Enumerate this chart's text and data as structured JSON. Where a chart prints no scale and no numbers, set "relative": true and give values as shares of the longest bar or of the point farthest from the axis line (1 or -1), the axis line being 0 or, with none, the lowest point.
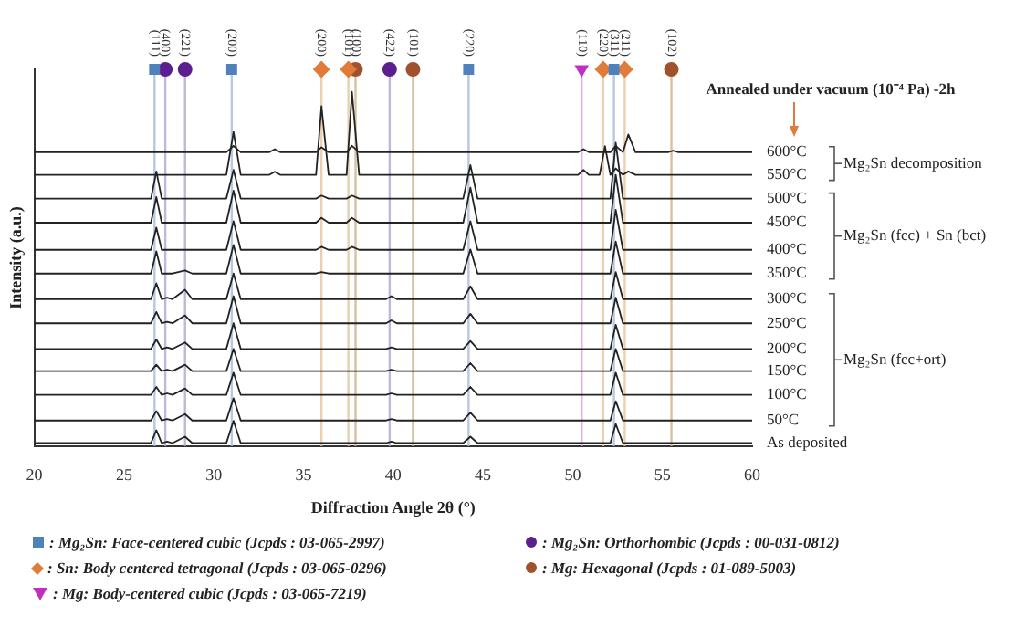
{
  "chart_data": {
    "type": "line",
    "relative": true,
    "xlabel": "Diffraction Angle 2θ (°)",
    "ylabel": "Intensity (a.u.)",
    "x": [
      20,
      26.5,
      26.8,
      27.1,
      27.4,
      27.7,
      28.4,
      28.8,
      30.7,
      31.1,
      31.5,
      33.1,
      33.4,
      33.7,
      35.7,
      36.0,
      36.4,
      37.4,
      37.7,
      38.1,
      39.6,
      39.9,
      40.2,
      43.9,
      44.3,
      44.7,
      50.3,
      50.6,
      50.9,
      51.5,
      51.8,
      52.1,
      52.4,
      52.8,
      53.1,
      53.5,
      55.3,
      55.6,
      55.9,
      60
    ],
    "xlim": [
      20,
      60
    ],
    "xticks": [
      20,
      25,
      30,
      35,
      40,
      45,
      50,
      55,
      60
    ],
    "grid": false,
    "legend": "bottom",
    "marker": "none",
    "line_style": "solid",
    "series": [
      {
        "name": "As deposited",
        "color": "#222222",
        "values": [
          0.008,
          0.008,
          0.042,
          0.008,
          0.012,
          0.008,
          0.025,
          0.008,
          0.008,
          0.067,
          0.008,
          0.008,
          0.008,
          0.008,
          0.008,
          0.008,
          0.008,
          0.008,
          0.008,
          0.008,
          0.008,
          0.012,
          0.008,
          0.008,
          0.025,
          0.008,
          0.008,
          0.008,
          0.008,
          0.008,
          0.008,
          0.008,
          0.059,
          0.008,
          0.008,
          0.008,
          0.008,
          0.008,
          0.008,
          0.008
        ]
      },
      {
        "name": "50°C",
        "color": "#222222",
        "values": [
          0.068,
          0.068,
          0.093,
          0.068,
          0.072,
          0.068,
          0.085,
          0.068,
          0.068,
          0.127,
          0.068,
          0.068,
          0.068,
          0.068,
          0.068,
          0.068,
          0.068,
          0.068,
          0.068,
          0.068,
          0.068,
          0.072,
          0.068,
          0.068,
          0.089,
          0.068,
          0.068,
          0.068,
          0.068,
          0.068,
          0.068,
          0.068,
          0.119,
          0.068,
          0.068,
          0.068,
          0.068,
          0.068,
          0.068,
          0.068
        ]
      },
      {
        "name": "100°C",
        "color": "#222222",
        "values": [
          0.136,
          0.136,
          0.157,
          0.136,
          0.14,
          0.136,
          0.153,
          0.136,
          0.136,
          0.195,
          0.136,
          0.136,
          0.136,
          0.136,
          0.136,
          0.136,
          0.136,
          0.136,
          0.136,
          0.136,
          0.136,
          0.14,
          0.136,
          0.136,
          0.157,
          0.136,
          0.136,
          0.136,
          0.136,
          0.136,
          0.136,
          0.136,
          0.195,
          0.136,
          0.136,
          0.136,
          0.136,
          0.136,
          0.136,
          0.136
        ]
      },
      {
        "name": "150°C",
        "color": "#222222",
        "values": [
          0.199,
          0.199,
          0.216,
          0.199,
          0.203,
          0.199,
          0.216,
          0.199,
          0.199,
          0.258,
          0.199,
          0.199,
          0.199,
          0.199,
          0.199,
          0.199,
          0.199,
          0.199,
          0.199,
          0.199,
          0.199,
          0.203,
          0.199,
          0.199,
          0.22,
          0.199,
          0.199,
          0.199,
          0.199,
          0.199,
          0.199,
          0.199,
          0.258,
          0.199,
          0.199,
          0.199,
          0.199,
          0.199,
          0.199,
          0.199
        ]
      },
      {
        "name": "200°C",
        "color": "#222222",
        "values": [
          0.258,
          0.258,
          0.283,
          0.258,
          0.262,
          0.258,
          0.275,
          0.258,
          0.258,
          0.326,
          0.258,
          0.258,
          0.258,
          0.258,
          0.258,
          0.258,
          0.258,
          0.258,
          0.258,
          0.258,
          0.258,
          0.262,
          0.258,
          0.258,
          0.279,
          0.258,
          0.258,
          0.258,
          0.258,
          0.258,
          0.258,
          0.258,
          0.322,
          0.258,
          0.258,
          0.258,
          0.258,
          0.258,
          0.258,
          0.258
        ]
      },
      {
        "name": "250°C",
        "color": "#222222",
        "values": [
          0.326,
          0.326,
          0.356,
          0.326,
          0.33,
          0.326,
          0.347,
          0.326,
          0.326,
          0.398,
          0.326,
          0.326,
          0.326,
          0.326,
          0.326,
          0.326,
          0.326,
          0.326,
          0.326,
          0.326,
          0.326,
          0.334,
          0.326,
          0.326,
          0.351,
          0.326,
          0.326,
          0.326,
          0.326,
          0.326,
          0.326,
          0.326,
          0.394,
          0.326,
          0.326,
          0.326,
          0.326,
          0.326,
          0.326,
          0.326
        ]
      },
      {
        "name": "300°C",
        "color": "#222222",
        "values": [
          0.39,
          0.39,
          0.432,
          0.39,
          0.394,
          0.39,
          0.415,
          0.39,
          0.39,
          0.458,
          0.39,
          0.39,
          0.39,
          0.39,
          0.39,
          0.39,
          0.39,
          0.39,
          0.39,
          0.39,
          0.39,
          0.398,
          0.39,
          0.39,
          0.424,
          0.39,
          0.39,
          0.39,
          0.39,
          0.39,
          0.39,
          0.39,
          0.462,
          0.39,
          0.39,
          0.39,
          0.39,
          0.39,
          0.39,
          0.39
        ]
      },
      {
        "name": "350°C",
        "color": "#222222",
        "values": [
          0.458,
          0.458,
          0.517,
          0.458,
          0.458,
          0.458,
          0.466,
          0.458,
          0.458,
          0.534,
          0.458,
          0.458,
          0.458,
          0.458,
          0.458,
          0.462,
          0.458,
          0.458,
          0.458,
          0.458,
          0.458,
          0.458,
          0.458,
          0.458,
          0.522,
          0.458,
          0.458,
          0.458,
          0.458,
          0.458,
          0.458,
          0.458,
          0.543,
          0.458,
          0.458,
          0.458,
          0.458,
          0.458,
          0.458,
          0.458
        ]
      },
      {
        "name": "400°C",
        "color": "#222222",
        "values": [
          0.521,
          0.521,
          0.58,
          0.521,
          0.521,
          0.521,
          0.521,
          0.521,
          0.521,
          0.597,
          0.521,
          0.521,
          0.521,
          0.521,
          0.521,
          0.529,
          0.521,
          0.521,
          0.529,
          0.521,
          0.521,
          0.521,
          0.521,
          0.521,
          0.597,
          0.521,
          0.521,
          0.521,
          0.521,
          0.521,
          0.521,
          0.521,
          0.627,
          0.521,
          0.521,
          0.521,
          0.521,
          0.521,
          0.521,
          0.521
        ]
      },
      {
        "name": "450°C",
        "color": "#222222",
        "values": [
          0.593,
          0.593,
          0.661,
          0.593,
          0.593,
          0.593,
          0.593,
          0.593,
          0.593,
          0.678,
          0.593,
          0.593,
          0.593,
          0.593,
          0.593,
          0.606,
          0.593,
          0.593,
          0.606,
          0.593,
          0.593,
          0.593,
          0.593,
          0.593,
          0.686,
          0.593,
          0.593,
          0.593,
          0.593,
          0.593,
          0.593,
          0.593,
          0.72,
          0.593,
          0.593,
          0.593,
          0.593,
          0.593,
          0.593,
          0.593
        ]
      },
      {
        "name": "500°C",
        "color": "#222222",
        "values": [
          0.657,
          0.657,
          0.729,
          0.657,
          0.657,
          0.657,
          0.657,
          0.657,
          0.657,
          0.733,
          0.657,
          0.657,
          0.657,
          0.657,
          0.657,
          0.665,
          0.657,
          0.657,
          0.665,
          0.657,
          0.657,
          0.657,
          0.657,
          0.657,
          0.746,
          0.657,
          0.657,
          0.657,
          0.657,
          0.657,
          0.657,
          0.657,
          0.805,
          0.657,
          0.657,
          0.657,
          0.657,
          0.657,
          0.657,
          0.657
        ]
      },
      {
        "name": "550°C",
        "color": "#222222",
        "values": [
          0.72,
          0.72,
          0.72,
          0.72,
          0.72,
          0.72,
          0.72,
          0.72,
          0.72,
          0.834,
          0.72,
          0.72,
          0.728,
          0.72,
          0.72,
          0.902,
          0.72,
          0.72,
          0.94,
          0.72,
          0.72,
          0.72,
          0.72,
          0.72,
          0.72,
          0.72,
          0.72,
          0.733,
          0.72,
          0.72,
          0.796,
          0.72,
          0.737,
          0.72,
          0.729,
          0.72,
          0.72,
          0.72,
          0.72,
          0.72
        ]
      },
      {
        "name": "600°C",
        "color": "#222222",
        "values": [
          0.78,
          0.78,
          0.78,
          0.78,
          0.78,
          0.78,
          0.78,
          0.78,
          0.78,
          0.797,
          0.78,
          0.78,
          0.788,
          0.78,
          0.78,
          0.793,
          0.78,
          0.78,
          0.797,
          0.78,
          0.78,
          0.78,
          0.78,
          0.78,
          0.78,
          0.78,
          0.78,
          0.788,
          0.78,
          0.78,
          0.78,
          0.78,
          0.797,
          0.78,
          0.827,
          0.78,
          0.78,
          0.784,
          0.78,
          0.78
        ]
      },
      {
        "type": "scatter",
        "name": ": Mg₂Sn: Face-centered cubic (Jcpds : 03-065-2997)",
        "color": "#4f81bd",
        "marker": "square",
        "x": [
          26.7,
          31.0,
          44.2,
          52.3
        ],
        "values": [
          1,
          1,
          1,
          1
        ]
      },
      {
        "type": "scatter",
        "name": ": Mg₂Sn: Orthorhombic (Jcpds : 00-031-0812)",
        "color": "#5b1f8f",
        "marker": "circle",
        "x": [
          27.3,
          28.4,
          39.8
        ],
        "values": [
          1,
          1,
          1
        ]
      },
      {
        "type": "scatter",
        "name": ": Sn: Body centered tetragonal (Jcpds : 03-065-0296)",
        "color": "#e07b39",
        "marker": "diamond",
        "x": [
          36.0,
          37.5,
          51.7,
          52.9
        ],
        "values": [
          1,
          1,
          1,
          1
        ]
      },
      {
        "type": "scatter",
        "name": ": Mg: Hexagonal (Jcpds : 01-089-5003)",
        "color": "#a0522d",
        "marker": "circle",
        "x": [
          37.9,
          41.1,
          55.5
        ],
        "values": [
          1,
          1,
          1
        ]
      },
      {
        "type": "scatter",
        "name": ": Mg: Body-centered cubic (Jcpds : 03-065-7219)",
        "color": "#c030c0",
        "marker": "triangle",
        "x": [
          50.5
        ],
        "values": [
          1
        ]
      }
    ],
    "ref_lines": [
      {
        "axis": "x",
        "value": 26.7,
        "color": "#b8c8e0"
      },
      {
        "axis": "x",
        "value": 27.3,
        "color": "#c0b8d8"
      },
      {
        "axis": "x",
        "value": 28.4,
        "color": "#c0b8d8"
      },
      {
        "axis": "x",
        "value": 31.0,
        "color": "#b8c8e0"
      },
      {
        "axis": "x",
        "value": 36.0,
        "color": "#e8d0b0"
      },
      {
        "axis": "x",
        "value": 37.5,
        "color": "#e8d0b0"
      },
      {
        "axis": "x",
        "value": 37.9,
        "color": "#d8c0a0"
      },
      {
        "axis": "x",
        "value": 39.8,
        "color": "#c0b8d8"
      },
      {
        "axis": "x",
        "value": 41.1,
        "color": "#d8c0a0"
      },
      {
        "axis": "x",
        "value": 44.2,
        "color": "#b8c8e0"
      },
      {
        "axis": "x",
        "value": 50.5,
        "color": "#e0b0e0"
      },
      {
        "axis": "x",
        "value": 51.7,
        "color": "#e8d0b0"
      },
      {
        "axis": "x",
        "value": 52.3,
        "color": "#b8c8e0"
      },
      {
        "axis": "x",
        "value": 52.9,
        "color": "#e8d0b0"
      },
      {
        "axis": "x",
        "value": 55.5,
        "color": "#d8c0a0"
      }
    ],
    "annotations": [
      "Annealed under vacuum (10⁻⁴ Pa) -2h",
      "Mg₂Sn decomposition",
      "Mg₂Sn (fcc) + Sn (bct)",
      "Mg₂Sn (fcc+ort)",
      {
        "text": "(111)",
        "x": 26.7,
        "y": 1
      },
      {
        "text": "(400)",
        "x": 27.3,
        "y": 1
      },
      {
        "text": "(221)",
        "x": 28.4,
        "y": 1
      },
      {
        "text": "(200)",
        "x": 31.0,
        "y": 1
      },
      {
        "text": "(200)",
        "x": 36.0,
        "y": 1
      },
      {
        "text": "(101)",
        "x": 37.5,
        "y": 1
      },
      {
        "text": "(100)",
        "x": 37.9,
        "y": 1
      },
      {
        "text": "(422)",
        "x": 39.8,
        "y": 1
      },
      {
        "text": "(101)",
        "x": 41.1,
        "y": 1
      },
      {
        "text": "(220)",
        "x": 44.2,
        "y": 1
      },
      {
        "text": "(110)",
        "x": 50.5,
        "y": 1
      },
      {
        "text": "(220)",
        "x": 51.7,
        "y": 1
      },
      {
        "text": "(311)",
        "x": 52.3,
        "y": 1
      },
      {
        "text": "(211)",
        "x": 52.9,
        "y": 1
      },
      {
        "text": "(102)",
        "x": 55.5,
        "y": 1
      }
    ]
  }
}
